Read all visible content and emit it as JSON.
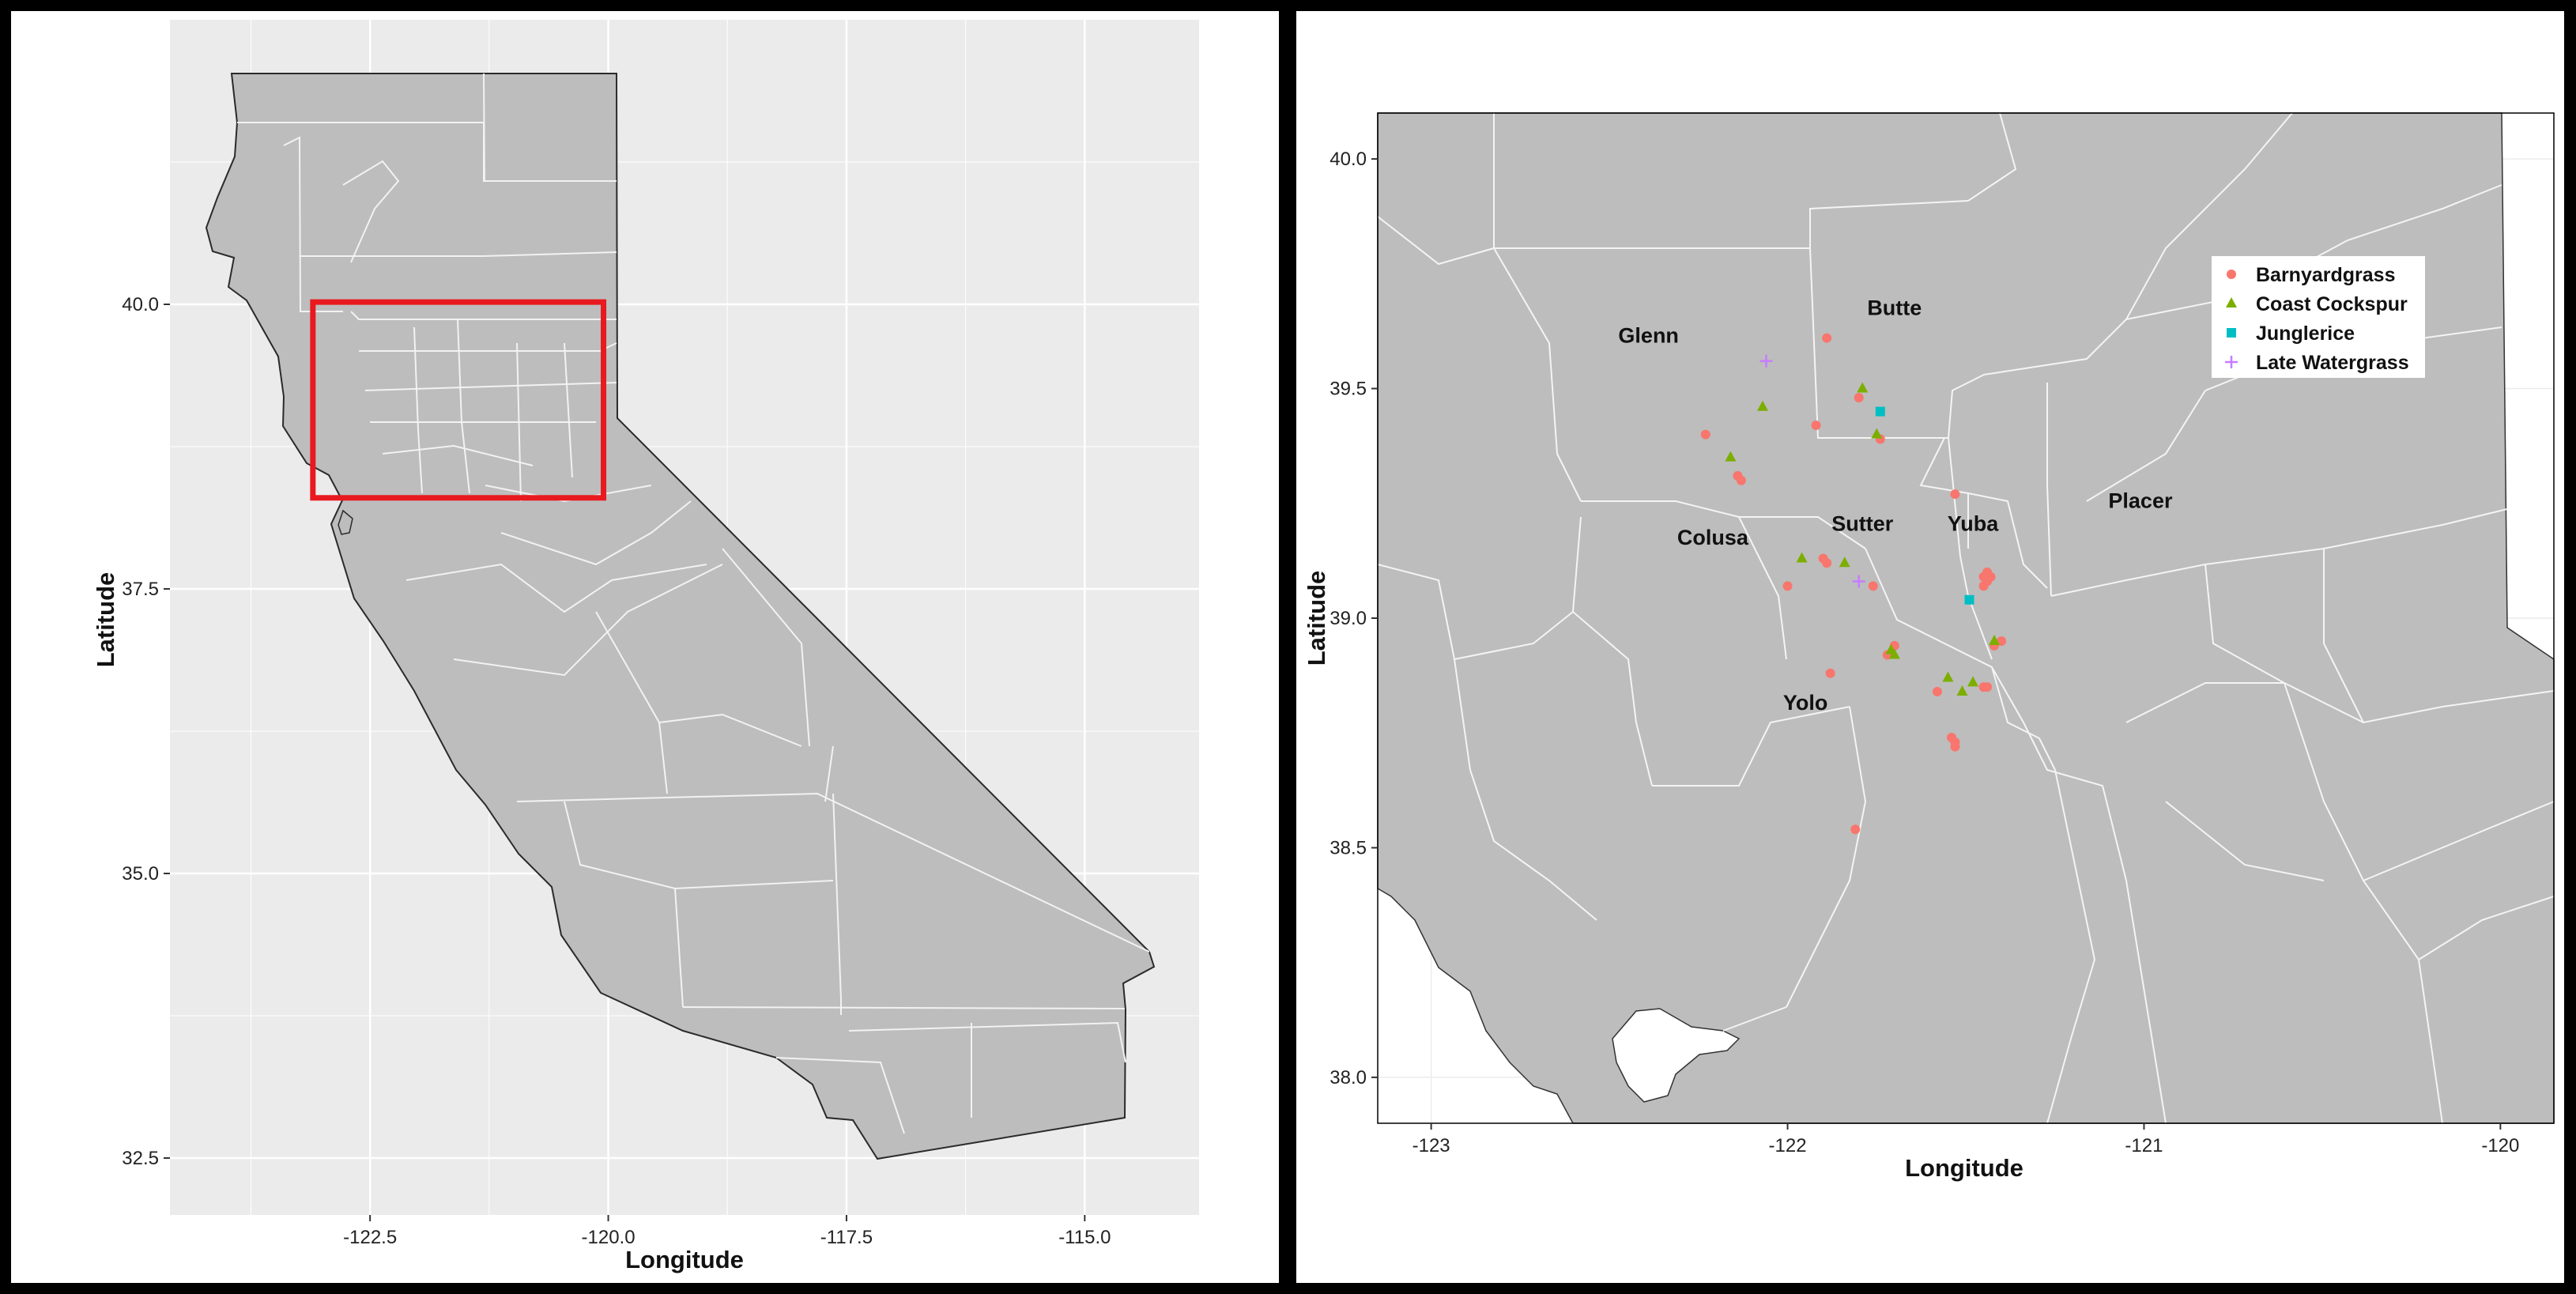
{
  "colors": {
    "panel_bg": "#ebebeb",
    "land": "#bdbdbd",
    "county_line": "#f2f2f2",
    "highlight_box": "#e8191f",
    "barnyardgrass": "#f8766d",
    "coast_cockspur": "#7cae00",
    "junglerice": "#00bfc4",
    "late_watergrass": "#c77cff"
  },
  "left_map": {
    "xlabel": "Longitude",
    "ylabel": "Latitude",
    "xlim": [
      -124.6,
      -113.8
    ],
    "ylim": [
      32.0,
      42.5
    ],
    "x_ticks": [
      "-122.5",
      "-120.0",
      "-117.5",
      "-115.0"
    ],
    "y_ticks": [
      "32.5",
      "35.0",
      "37.5",
      "40.0"
    ],
    "highlight_region": {
      "lon_min": -123.1,
      "lon_max": -120.05,
      "lat_min": 38.3,
      "lat_max": 40.02
    }
  },
  "right_map": {
    "xlabel": "Longitude",
    "ylabel": "Latitude",
    "xlim": [
      -123.15,
      -119.85
    ],
    "ylim": [
      37.9,
      40.1
    ],
    "x_ticks": [
      "-123",
      "-122",
      "-121",
      "-120"
    ],
    "y_ticks": [
      "38.0",
      "38.5",
      "39.0",
      "39.5",
      "40.0"
    ],
    "counties": [
      {
        "name": "Glenn",
        "lon": -122.39,
        "lat": 39.6
      },
      {
        "name": "Butte",
        "lon": -121.7,
        "lat": 39.66
      },
      {
        "name": "Colusa",
        "lon": -122.21,
        "lat": 39.16
      },
      {
        "name": "Sutter",
        "lon": -121.79,
        "lat": 39.19
      },
      {
        "name": "Yuba",
        "lon": -121.48,
        "lat": 39.19
      },
      {
        "name": "Placer",
        "lon": -121.01,
        "lat": 39.24
      },
      {
        "name": "Yolo",
        "lon": -121.95,
        "lat": 38.8
      }
    ],
    "legend": [
      {
        "label": "Barnyardgrass",
        "shape": "circle",
        "color_key": "barnyardgrass"
      },
      {
        "label": "Coast Cockspur",
        "shape": "triangle",
        "color_key": "coast_cockspur"
      },
      {
        "label": "Junglerice",
        "shape": "square",
        "color_key": "junglerice"
      },
      {
        "label": "Late Watergrass",
        "shape": "plus",
        "color_key": "late_watergrass"
      }
    ],
    "observations": [
      {
        "species": "Barnyardgrass",
        "points": [
          [
            -121.89,
            39.61
          ],
          [
            -122.23,
            39.4
          ],
          [
            -121.92,
            39.42
          ],
          [
            -121.8,
            39.48
          ],
          [
            -121.74,
            39.39
          ],
          [
            -122.14,
            39.31
          ],
          [
            -122.13,
            39.3
          ],
          [
            -121.53,
            39.27
          ],
          [
            -121.9,
            39.13
          ],
          [
            -121.89,
            39.12
          ],
          [
            -122.0,
            39.07
          ],
          [
            -121.76,
            39.07
          ],
          [
            -121.45,
            39.09
          ],
          [
            -121.44,
            39.1
          ],
          [
            -121.44,
            39.08
          ],
          [
            -121.45,
            39.07
          ],
          [
            -121.43,
            39.09
          ],
          [
            -121.88,
            38.88
          ],
          [
            -121.7,
            38.94
          ],
          [
            -121.72,
            38.92
          ],
          [
            -121.42,
            38.94
          ],
          [
            -121.4,
            38.95
          ],
          [
            -121.58,
            38.84
          ],
          [
            -121.45,
            38.85
          ],
          [
            -121.44,
            38.85
          ],
          [
            -121.54,
            38.74
          ],
          [
            -121.53,
            38.73
          ],
          [
            -121.53,
            38.72
          ],
          [
            -121.81,
            38.54
          ]
        ]
      },
      {
        "species": "Coast Cockspur",
        "points": [
          [
            -122.07,
            39.46
          ],
          [
            -121.79,
            39.5
          ],
          [
            -121.75,
            39.4
          ],
          [
            -122.16,
            39.35
          ],
          [
            -121.96,
            39.13
          ],
          [
            -121.84,
            39.12
          ],
          [
            -121.71,
            38.93
          ],
          [
            -121.7,
            38.92
          ],
          [
            -121.55,
            38.87
          ],
          [
            -121.48,
            38.86
          ],
          [
            -121.51,
            38.84
          ],
          [
            -121.42,
            38.95
          ]
        ]
      },
      {
        "species": "Junglerice",
        "points": [
          [
            -121.74,
            39.45
          ],
          [
            -121.49,
            39.04
          ]
        ]
      },
      {
        "species": "Late Watergrass",
        "points": [
          [
            -122.06,
            39.56
          ],
          [
            -121.8,
            39.08
          ]
        ]
      }
    ]
  }
}
